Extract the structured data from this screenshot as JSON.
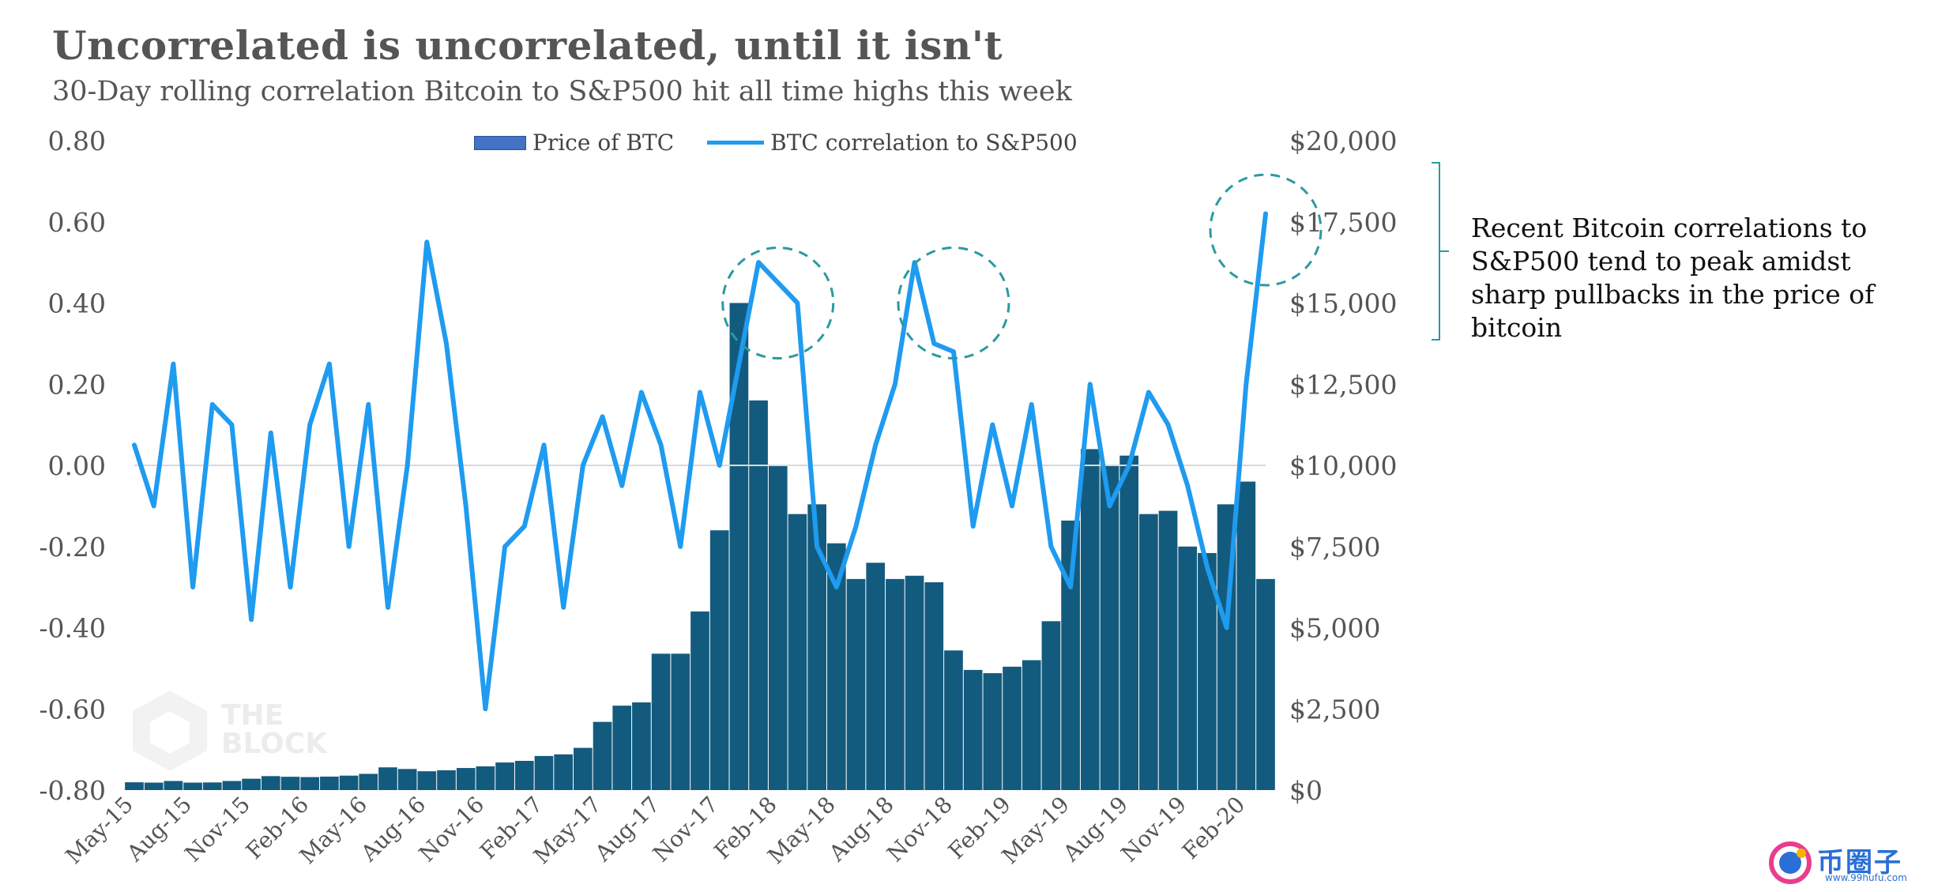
{
  "title": "Uncorrelated is uncorrelated, until it isn't",
  "subtitle": "30-Day rolling correlation Bitcoin to S&P500 hit all time highs this week",
  "annotation": "Recent Bitcoin correlations to S&P500 tend to peak amidst sharp pullbacks in the price of bitcoin",
  "watermark": {
    "text_line1": "THE",
    "text_line2": "BLOCK"
  },
  "brand_logo": {
    "text": "币圈子",
    "sub": "www.99hufu.com"
  },
  "colors": {
    "bars": "#135b7e",
    "line": "#1f9bf0",
    "circles": "#2a9aa0",
    "bracket": "#2a9aa0",
    "legend_bar": "#4472c4"
  },
  "chart_data": {
    "type": "bar+line",
    "x_tick_labels": [
      "May-15",
      "Aug-15",
      "Nov-15",
      "Feb-16",
      "May-16",
      "Aug-16",
      "Nov-16",
      "Feb-17",
      "May-17",
      "Aug-17",
      "Nov-17",
      "Feb-18",
      "May-18",
      "Aug-18",
      "Nov-18",
      "Feb-19",
      "May-19",
      "Aug-19",
      "Nov-19",
      "Feb-20"
    ],
    "left_axis": {
      "label": "",
      "ylim": [
        -0.8,
        0.8
      ],
      "ticks": [
        "0.80",
        "0.60",
        "0.40",
        "0.20",
        "0.00",
        "-0.20",
        "-0.40",
        "-0.60",
        "-0.80"
      ]
    },
    "right_axis": {
      "label": "",
      "ylim": [
        0,
        20000
      ],
      "ticks": [
        "$20,000",
        "$17,500",
        "$15,000",
        "$12,500",
        "$10,000",
        "$7,500",
        "$5,000",
        "$2,500",
        "$0"
      ]
    },
    "legend": {
      "position": "top-center"
    },
    "grid": false,
    "series": [
      {
        "name": "Price of BTC",
        "type": "bar",
        "axis": "right",
        "x": [
          "2015-05",
          "2015-06",
          "2015-07",
          "2015-08",
          "2015-09",
          "2015-10",
          "2015-11",
          "2015-12",
          "2016-01",
          "2016-02",
          "2016-03",
          "2016-04",
          "2016-05",
          "2016-06",
          "2016-07",
          "2016-08",
          "2016-09",
          "2016-10",
          "2016-11",
          "2016-12",
          "2017-01",
          "2017-02",
          "2017-03",
          "2017-04",
          "2017-05",
          "2017-06",
          "2017-07",
          "2017-08",
          "2017-09",
          "2017-10",
          "2017-11",
          "2017-12",
          "2018-01",
          "2018-02",
          "2018-03",
          "2018-04",
          "2018-05",
          "2018-06",
          "2018-07",
          "2018-08",
          "2018-09",
          "2018-10",
          "2018-11",
          "2018-12",
          "2019-01",
          "2019-02",
          "2019-03",
          "2019-04",
          "2019-05",
          "2019-06",
          "2019-07",
          "2019-08",
          "2019-09",
          "2019-10",
          "2019-11",
          "2019-12",
          "2020-01",
          "2020-02",
          "2020-03"
        ],
        "values": [
          240,
          230,
          280,
          230,
          235,
          280,
          350,
          430,
          410,
          400,
          415,
          445,
          500,
          700,
          650,
          580,
          610,
          680,
          730,
          850,
          900,
          1050,
          1100,
          1300,
          2100,
          2600,
          2700,
          4200,
          4200,
          5500,
          8000,
          15000,
          12000,
          10000,
          8500,
          8800,
          7600,
          6500,
          7000,
          6500,
          6600,
          6400,
          4300,
          3700,
          3600,
          3800,
          4000,
          5200,
          8300,
          10500,
          10000,
          10300,
          8500,
          8600,
          7500,
          7300,
          8800,
          9500,
          6500
        ]
      },
      {
        "name": "BTC correlation to S&P500",
        "type": "line",
        "axis": "left",
        "x": [
          "2015-05",
          "2015-06",
          "2015-07",
          "2015-08",
          "2015-09",
          "2015-10",
          "2015-11",
          "2015-12",
          "2016-01",
          "2016-02",
          "2016-03",
          "2016-04",
          "2016-05",
          "2016-06",
          "2016-07",
          "2016-08",
          "2016-09",
          "2016-10",
          "2016-11",
          "2016-12",
          "2017-01",
          "2017-02",
          "2017-03",
          "2017-04",
          "2017-05",
          "2017-06",
          "2017-07",
          "2017-08",
          "2017-09",
          "2017-10",
          "2017-11",
          "2017-12",
          "2018-01",
          "2018-02",
          "2018-03",
          "2018-04",
          "2018-05",
          "2018-06",
          "2018-07",
          "2018-08",
          "2018-09",
          "2018-10",
          "2018-11",
          "2018-12",
          "2019-01",
          "2019-02",
          "2019-03",
          "2019-04",
          "2019-05",
          "2019-06",
          "2019-07",
          "2019-08",
          "2019-09",
          "2019-10",
          "2019-11",
          "2019-12",
          "2020-01",
          "2020-02",
          "2020-03"
        ],
        "values": [
          0.05,
          -0.1,
          0.25,
          -0.3,
          0.15,
          0.1,
          -0.38,
          0.08,
          -0.3,
          0.1,
          0.25,
          -0.2,
          0.15,
          -0.35,
          0.0,
          0.55,
          0.3,
          -0.1,
          -0.6,
          -0.2,
          -0.15,
          0.05,
          -0.35,
          0.0,
          0.12,
          -0.05,
          0.18,
          0.05,
          -0.2,
          0.18,
          0.0,
          0.25,
          0.5,
          0.45,
          0.4,
          -0.2,
          -0.3,
          -0.15,
          0.05,
          0.2,
          0.5,
          0.3,
          0.28,
          -0.15,
          0.1,
          -0.1,
          0.15,
          -0.2,
          -0.3,
          0.2,
          -0.1,
          0.0,
          0.18,
          0.1,
          -0.05,
          -0.25,
          -0.4,
          0.2,
          0.62
        ]
      }
    ],
    "annotations": [
      {
        "type": "circle",
        "at": "2018-02",
        "value": 0.4
      },
      {
        "type": "circle",
        "at": "2018-11",
        "value": 0.4
      },
      {
        "type": "circle",
        "at": "2020-03",
        "value": 0.58
      }
    ]
  }
}
